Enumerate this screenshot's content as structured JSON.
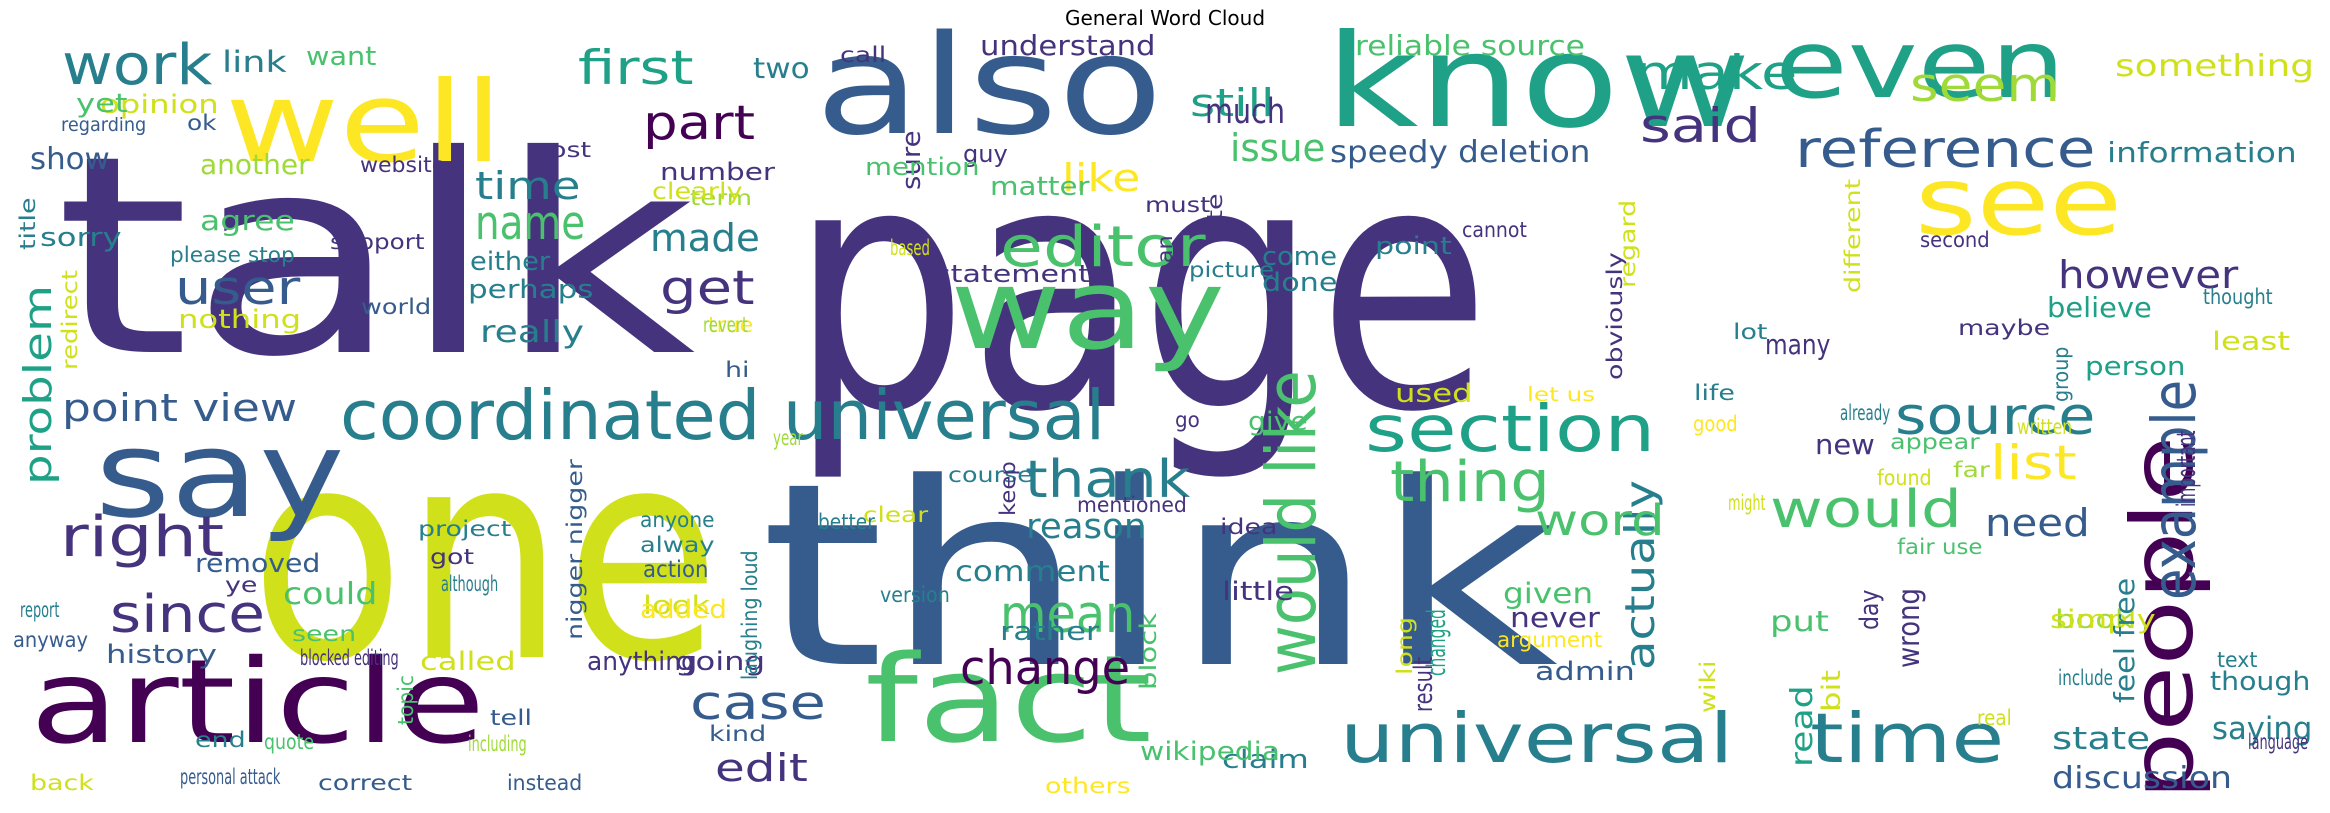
{
  "title": "General Word Cloud",
  "palette": {
    "v1": "#440154",
    "v2": "#46337e",
    "v3": "#365c8d",
    "v4": "#277f8e",
    "v5": "#1fa187",
    "v6": "#4ac16d",
    "v7": "#a0da39",
    "v8": "#d0e11c",
    "v9": "#fde725"
  },
  "words": [
    {
      "t": "talk",
      "c": "v2"
    },
    {
      "t": "page",
      "c": "v2"
    },
    {
      "t": "one",
      "c": "v8"
    },
    {
      "t": "think",
      "c": "v3"
    },
    {
      "t": "also",
      "c": "v3"
    },
    {
      "t": "know",
      "c": "v5"
    },
    {
      "t": "even",
      "c": "v5"
    },
    {
      "t": "well",
      "c": "v9"
    },
    {
      "t": "see",
      "c": "v9"
    },
    {
      "t": "people",
      "c": "v1"
    },
    {
      "t": "article",
      "c": "v1"
    },
    {
      "t": "fact",
      "c": "v6"
    },
    {
      "t": "way",
      "c": "v6"
    },
    {
      "t": "say",
      "c": "v3"
    },
    {
      "t": "universal",
      "c": "v4"
    },
    {
      "t": "time",
      "c": "v4"
    },
    {
      "t": "coordinated universal",
      "c": "v4"
    },
    {
      "t": "would like",
      "c": "v6"
    },
    {
      "t": "section",
      "c": "v5"
    },
    {
      "t": "source",
      "c": "v4"
    },
    {
      "t": "work",
      "c": "v4"
    },
    {
      "t": "first",
      "c": "v5"
    },
    {
      "t": "part",
      "c": "v1"
    },
    {
      "t": "editor",
      "c": "v6"
    },
    {
      "t": "thing",
      "c": "v6"
    },
    {
      "t": "reference",
      "c": "v3"
    },
    {
      "t": "make",
      "c": "v5"
    },
    {
      "t": "said",
      "c": "v2"
    },
    {
      "t": "seem",
      "c": "v7"
    },
    {
      "t": "right",
      "c": "v2"
    },
    {
      "t": "since",
      "c": "v2"
    },
    {
      "t": "thank",
      "c": "v4"
    },
    {
      "t": "would",
      "c": "v6"
    },
    {
      "t": "list",
      "c": "v9"
    },
    {
      "t": "example",
      "c": "v3"
    },
    {
      "t": "mean",
      "c": "v6"
    },
    {
      "t": "case",
      "c": "v3"
    },
    {
      "t": "change",
      "c": "v1"
    },
    {
      "t": "name",
      "c": "v6"
    },
    {
      "t": "actually",
      "c": "v4"
    },
    {
      "t": "user",
      "c": "v3"
    },
    {
      "t": "get",
      "c": "v2"
    },
    {
      "t": "point view",
      "c": "v3"
    },
    {
      "t": "problem",
      "c": "v5"
    },
    {
      "t": "word",
      "c": "v6"
    },
    {
      "t": "need",
      "c": "v3"
    },
    {
      "t": "edit",
      "c": "v2"
    },
    {
      "t": "still",
      "c": "v5"
    },
    {
      "t": "issue",
      "c": "v6"
    },
    {
      "t": "like",
      "c": "v9"
    },
    {
      "t": "however",
      "c": "v2"
    },
    {
      "t": "made",
      "c": "v4"
    },
    {
      "t": "speedy deletion",
      "c": "v3"
    },
    {
      "t": "time",
      "c": "v4"
    },
    {
      "t": "reason",
      "c": "v4"
    },
    {
      "t": "state",
      "c": "v4"
    },
    {
      "t": "saying",
      "c": "v4"
    },
    {
      "t": "discussion",
      "c": "v3"
    },
    {
      "t": "understand",
      "c": "v2"
    },
    {
      "t": "reliable source",
      "c": "v6"
    },
    {
      "t": "much",
      "c": "v2"
    },
    {
      "t": "something",
      "c": "v8"
    },
    {
      "t": "information",
      "c": "v4"
    },
    {
      "t": "link",
      "c": "v4"
    },
    {
      "t": "want",
      "c": "v6"
    },
    {
      "t": "two",
      "c": "v4"
    },
    {
      "t": "opinion",
      "c": "v8"
    },
    {
      "t": "yet",
      "c": "v6"
    },
    {
      "t": "show",
      "c": "v3"
    },
    {
      "t": "another",
      "c": "v7"
    },
    {
      "t": "sorry",
      "c": "v4"
    },
    {
      "t": "agree",
      "c": "v6"
    },
    {
      "t": "either",
      "c": "v4"
    },
    {
      "t": "perhaps",
      "c": "v4"
    },
    {
      "t": "nothing",
      "c": "v8"
    },
    {
      "t": "really",
      "c": "v4"
    },
    {
      "t": "removed",
      "c": "v3"
    },
    {
      "t": "could",
      "c": "v6"
    },
    {
      "t": "history",
      "c": "v3"
    },
    {
      "t": "comment",
      "c": "v4"
    },
    {
      "t": "rather",
      "c": "v4"
    },
    {
      "t": "anything",
      "c": "v2"
    },
    {
      "t": "going",
      "c": "v2"
    },
    {
      "t": "look",
      "c": "v8"
    },
    {
      "t": "called",
      "c": "v8"
    },
    {
      "t": "little",
      "c": "v2"
    },
    {
      "t": "used",
      "c": "v8"
    },
    {
      "t": "give",
      "c": "v6"
    },
    {
      "t": "come",
      "c": "v4"
    },
    {
      "t": "done",
      "c": "v4"
    },
    {
      "t": "point",
      "c": "v4"
    },
    {
      "t": "statement",
      "c": "v2"
    },
    {
      "t": "many",
      "c": "v2"
    },
    {
      "t": "believe",
      "c": "v5"
    },
    {
      "t": "person",
      "c": "v5"
    },
    {
      "t": "least",
      "c": "v8"
    },
    {
      "t": "new",
      "c": "v2"
    },
    {
      "t": "given",
      "c": "v6"
    },
    {
      "t": "never",
      "c": "v2"
    },
    {
      "t": "put",
      "c": "v6"
    },
    {
      "t": "admin",
      "c": "v3"
    },
    {
      "t": "book",
      "c": "v7"
    },
    {
      "t": "simply",
      "c": "v8"
    },
    {
      "t": "though",
      "c": "v4"
    },
    {
      "t": "wrong",
      "c": "v2"
    },
    {
      "t": "read",
      "c": "v5"
    },
    {
      "t": "claim",
      "c": "v4"
    },
    {
      "t": "wikipedia",
      "c": "v6"
    },
    {
      "t": "call",
      "c": "v2"
    },
    {
      "t": "sure",
      "c": "v2"
    },
    {
      "t": "guy",
      "c": "v2"
    },
    {
      "t": "mention",
      "c": "v6"
    },
    {
      "t": "matter",
      "c": "v6"
    },
    {
      "t": "number",
      "c": "v2"
    },
    {
      "t": "term",
      "c": "v7"
    },
    {
      "t": "clearly",
      "c": "v8"
    },
    {
      "t": "post",
      "c": "v2"
    },
    {
      "t": "website",
      "c": "v2"
    },
    {
      "t": "ok",
      "c": "v3"
    },
    {
      "t": "regarding",
      "c": "v3"
    },
    {
      "t": "title",
      "c": "v4"
    },
    {
      "t": "please stop",
      "c": "v4"
    },
    {
      "t": "support",
      "c": "v2"
    },
    {
      "t": "redirect",
      "c": "v8"
    },
    {
      "t": "world",
      "c": "v3"
    },
    {
      "t": "true",
      "c": "v9"
    },
    {
      "t": "revert",
      "c": "v7"
    },
    {
      "t": "hi",
      "c": "v3"
    },
    {
      "t": "course",
      "c": "v4"
    },
    {
      "t": "site",
      "c": "v2"
    },
    {
      "t": "must",
      "c": "v2"
    },
    {
      "t": "based",
      "c": "v8"
    },
    {
      "t": "man",
      "c": "v2"
    },
    {
      "t": "picture",
      "c": "v4"
    },
    {
      "t": "go",
      "c": "v2"
    },
    {
      "t": "year",
      "c": "v7"
    },
    {
      "t": "keep",
      "c": "v2"
    },
    {
      "t": "mentioned",
      "c": "v2"
    },
    {
      "t": "clear",
      "c": "v8"
    },
    {
      "t": "better",
      "c": "v4"
    },
    {
      "t": "anyone",
      "c": "v4"
    },
    {
      "t": "alway",
      "c": "v4"
    },
    {
      "t": "action",
      "c": "v3"
    },
    {
      "t": "added",
      "c": "v9"
    },
    {
      "t": "version",
      "c": "v4"
    },
    {
      "t": "project",
      "c": "v4"
    },
    {
      "t": "got",
      "c": "v2"
    },
    {
      "t": "although",
      "c": "v4"
    },
    {
      "t": "ye",
      "c": "v2"
    },
    {
      "t": "report",
      "c": "v4"
    },
    {
      "t": "anyway",
      "c": "v3"
    },
    {
      "t": "seen",
      "c": "v6"
    },
    {
      "t": "blocked editing",
      "c": "v2"
    },
    {
      "t": "nigger nigger",
      "c": "v3"
    },
    {
      "t": "laughing loud",
      "c": "v4"
    },
    {
      "t": "kind",
      "c": "v3"
    },
    {
      "t": "topic",
      "c": "v6"
    },
    {
      "t": "end",
      "c": "v4"
    },
    {
      "t": "quote",
      "c": "v6"
    },
    {
      "t": "tell",
      "c": "v3"
    },
    {
      "t": "including",
      "c": "v7"
    },
    {
      "t": "back",
      "c": "v8"
    },
    {
      "t": "personal attack",
      "c": "v3"
    },
    {
      "t": "correct",
      "c": "v3"
    },
    {
      "t": "instead",
      "c": "v3"
    },
    {
      "t": "others",
      "c": "v9"
    },
    {
      "t": "block",
      "c": "v6"
    },
    {
      "t": "idea",
      "c": "v2"
    },
    {
      "t": "result",
      "c": "v2"
    },
    {
      "t": "long",
      "c": "v8"
    },
    {
      "t": "changed",
      "c": "v5"
    },
    {
      "t": "argument",
      "c": "v9"
    },
    {
      "t": "wiki",
      "c": "v8"
    },
    {
      "t": "bit",
      "c": "v8"
    },
    {
      "t": "day",
      "c": "v2"
    },
    {
      "t": "real",
      "c": "v8"
    },
    {
      "t": "include",
      "c": "v4"
    },
    {
      "t": "text",
      "c": "v4"
    },
    {
      "t": "language",
      "c": "v2"
    },
    {
      "t": "let us",
      "c": "v9"
    },
    {
      "t": "life",
      "c": "v4"
    },
    {
      "t": "good",
      "c": "v9"
    },
    {
      "t": "already",
      "c": "v4"
    },
    {
      "t": "appear",
      "c": "v6"
    },
    {
      "t": "far",
      "c": "v7"
    },
    {
      "t": "might",
      "c": "v8"
    },
    {
      "t": "found",
      "c": "v8"
    },
    {
      "t": "written",
      "c": "v8"
    },
    {
      "t": "important",
      "c": "v2"
    },
    {
      "t": "fair use",
      "c": "v6"
    },
    {
      "t": "feel free",
      "c": "v4"
    },
    {
      "t": "lot",
      "c": "v4"
    },
    {
      "t": "maybe",
      "c": "v2"
    },
    {
      "t": "group",
      "c": "v4"
    },
    {
      "t": "thought",
      "c": "v4"
    },
    {
      "t": "cannot",
      "c": "v2"
    },
    {
      "t": "obviously",
      "c": "v2"
    },
    {
      "t": "regard",
      "c": "v8"
    },
    {
      "t": "different",
      "c": "v8"
    },
    {
      "t": "second",
      "c": "v2"
    }
  ]
}
